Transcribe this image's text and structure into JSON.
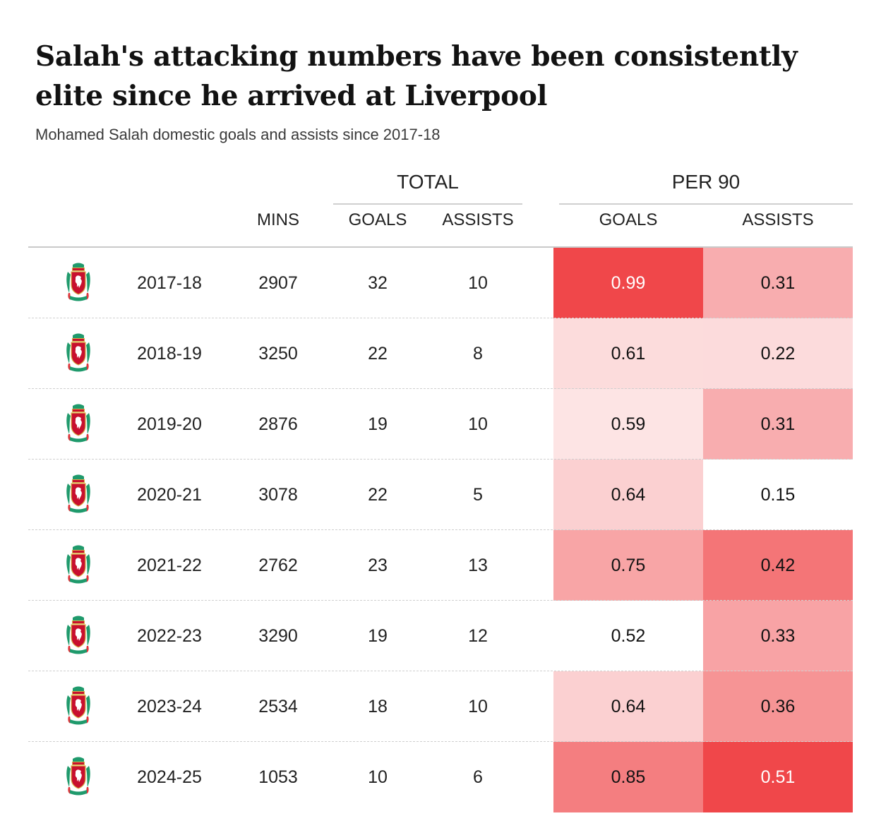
{
  "title": "Salah's attacking numbers have been consistently elite since he arrived at Liverpool",
  "subtitle": "Mohamed Salah domestic goals and assists since 2017-18",
  "groups": {
    "total": "TOTAL",
    "per90": "PER 90"
  },
  "columns": {
    "mins": "MINS",
    "total_goals": "GOALS",
    "total_assists": "ASSISTS",
    "p90_goals": "GOALS",
    "p90_assists": "ASSISTS"
  },
  "icons": {
    "crest": "liverpool-crest-icon"
  },
  "colors": {
    "heat_low": "#ffffff",
    "heat_high": "#f0474a",
    "text_dark": "#121212",
    "text_light": "#ffffff"
  },
  "chart_data": {
    "type": "table",
    "title": "Salah's attacking numbers have been consistently elite since he arrived at Liverpool",
    "subtitle": "Mohamed Salah domestic goals and assists since 2017-18",
    "columns": [
      "",
      "",
      "MINS",
      "GOALS",
      "ASSISTS",
      "GOALS",
      "ASSISTS"
    ],
    "column_groups": [
      {
        "label": "TOTAL",
        "columns": [
          "GOALS",
          "ASSISTS"
        ]
      },
      {
        "label": "PER 90",
        "columns": [
          "GOALS",
          "ASSISTS"
        ]
      }
    ],
    "rows": [
      {
        "season": "2017-18",
        "mins": "2907",
        "goals": "32",
        "assists": "10",
        "goals_p90": "0.99",
        "assists_p90": "0.31"
      },
      {
        "season": "2018-19",
        "mins": "3250",
        "goals": "22",
        "assists": "8",
        "goals_p90": "0.61",
        "assists_p90": "0.22"
      },
      {
        "season": "2019-20",
        "mins": "2876",
        "goals": "19",
        "assists": "10",
        "goals_p90": "0.59",
        "assists_p90": "0.31"
      },
      {
        "season": "2020-21",
        "mins": "3078",
        "goals": "22",
        "assists": "5",
        "goals_p90": "0.64",
        "assists_p90": "0.15"
      },
      {
        "season": "2021-22",
        "mins": "2762",
        "goals": "23",
        "assists": "13",
        "goals_p90": "0.75",
        "assists_p90": "0.42"
      },
      {
        "season": "2022-23",
        "mins": "3290",
        "goals": "19",
        "assists": "12",
        "goals_p90": "0.52",
        "assists_p90": "0.33"
      },
      {
        "season": "2023-24",
        "mins": "2534",
        "goals": "18",
        "assists": "10",
        "goals_p90": "0.64",
        "assists_p90": "0.36"
      },
      {
        "season": "2024-25",
        "mins": "1053",
        "goals": "10",
        "assists": "6",
        "goals_p90": "0.85",
        "assists_p90": "0.51"
      }
    ]
  }
}
